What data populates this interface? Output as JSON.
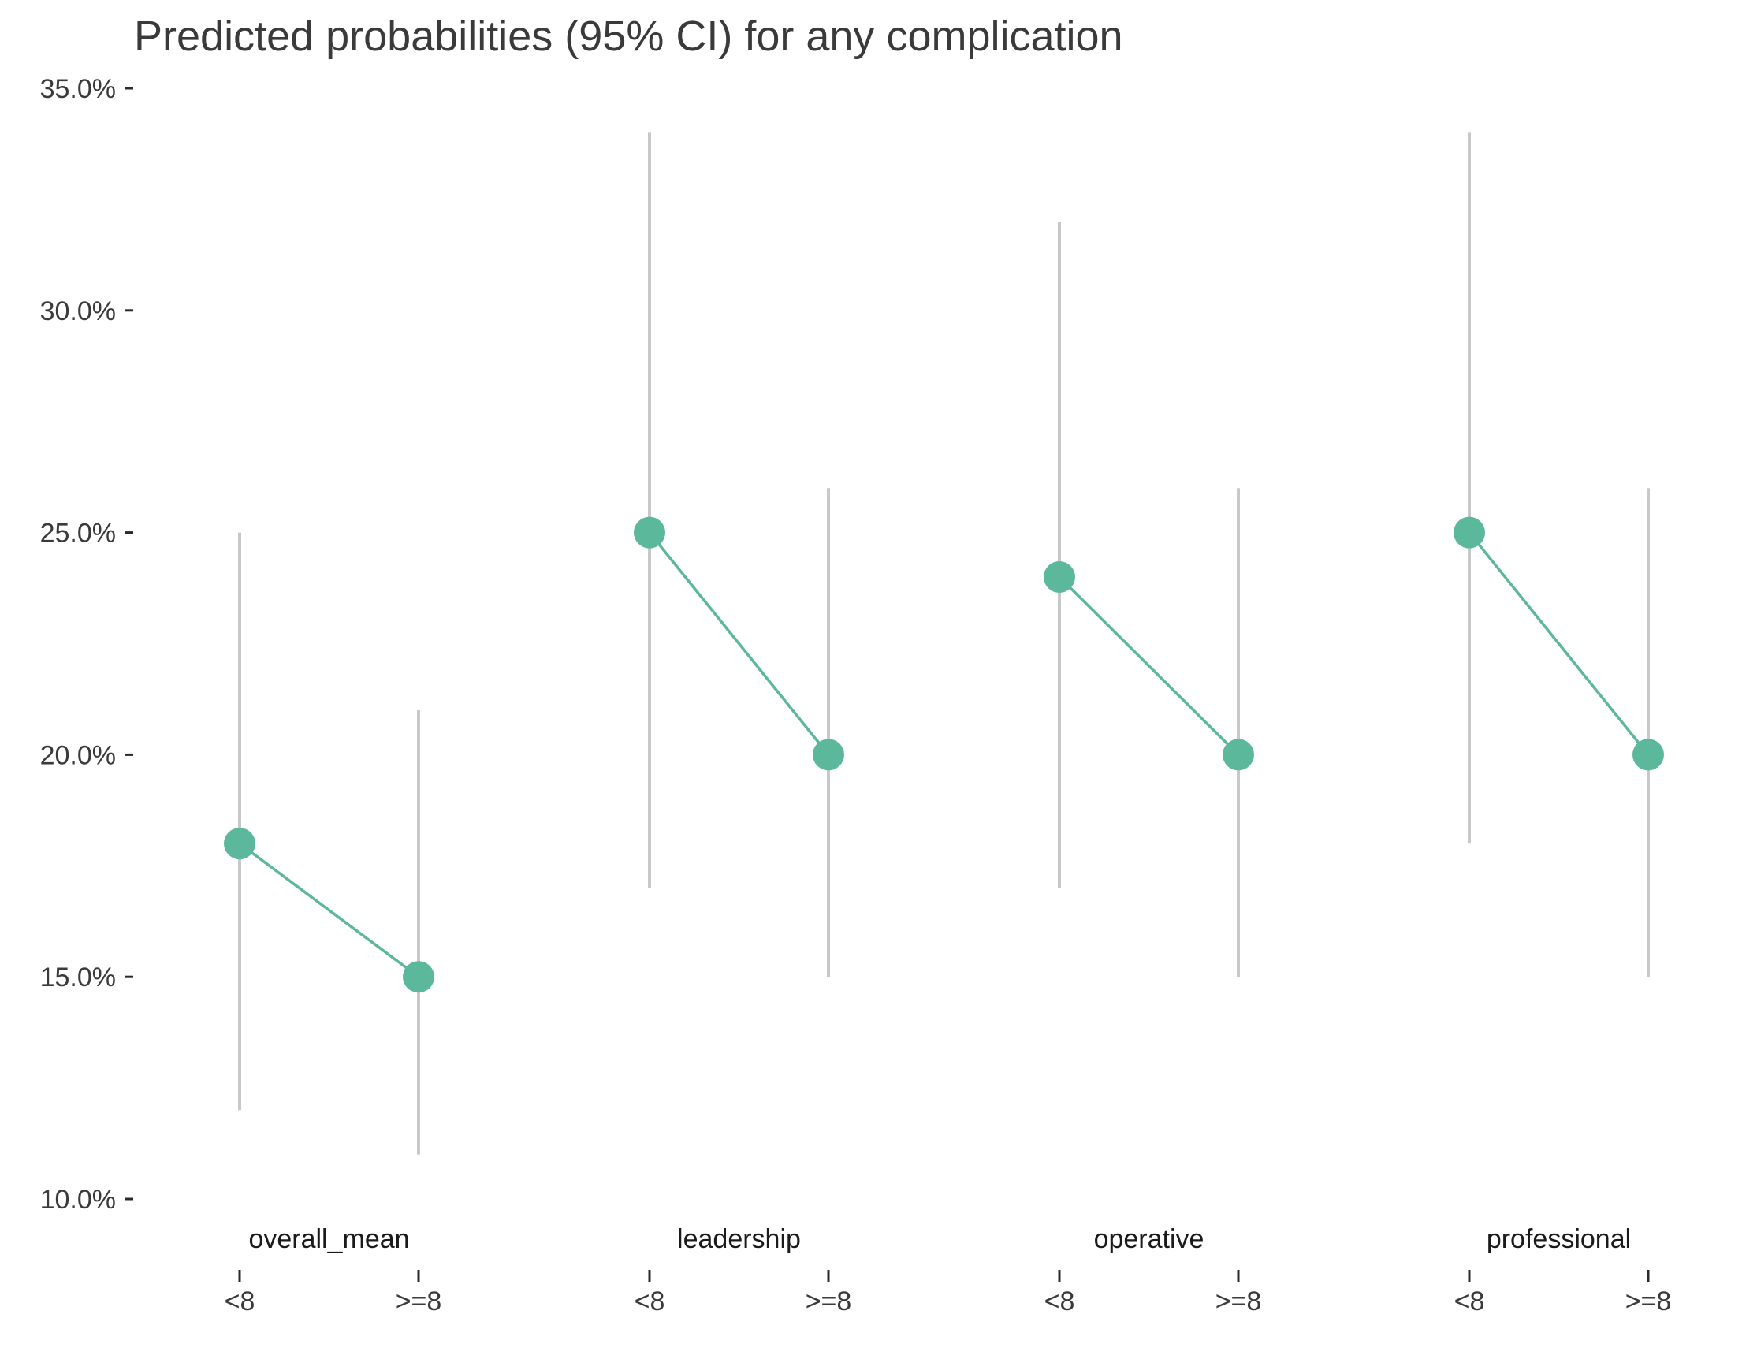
{
  "chart_data": {
    "type": "line",
    "title": "Predicted probabilities (95% CI) for any complication",
    "xlabel": "",
    "ylabel": "",
    "ylim": [
      0.1,
      0.35
    ],
    "yticks": [
      0.1,
      0.15,
      0.2,
      0.25,
      0.3,
      0.35
    ],
    "ytick_labels": [
      "10.0%",
      "15.0%",
      "20.0%",
      "25.0%",
      "30.0%",
      "35.0%"
    ],
    "grid": false,
    "legend": "none",
    "colors": {
      "series": "#5bb89a",
      "ci": "#c8c8c8",
      "axis": "#2a2a2a",
      "text": "#3a3a3a"
    },
    "groups": [
      {
        "name": "overall_mean",
        "points": [
          {
            "x": "<8",
            "y": 0.18,
            "lower": 0.12,
            "upper": 0.25
          },
          {
            "x": ">=8",
            "y": 0.15,
            "lower": 0.11,
            "upper": 0.21
          }
        ]
      },
      {
        "name": "leadership",
        "points": [
          {
            "x": "<8",
            "y": 0.25,
            "lower": 0.17,
            "upper": 0.34
          },
          {
            "x": ">=8",
            "y": 0.2,
            "lower": 0.15,
            "upper": 0.26
          }
        ]
      },
      {
        "name": "operative",
        "points": [
          {
            "x": "<8",
            "y": 0.24,
            "lower": 0.17,
            "upper": 0.32
          },
          {
            "x": ">=8",
            "y": 0.2,
            "lower": 0.15,
            "upper": 0.26
          }
        ]
      },
      {
        "name": "professional",
        "points": [
          {
            "x": "<8",
            "y": 0.25,
            "lower": 0.18,
            "upper": 0.34
          },
          {
            "x": ">=8",
            "y": 0.2,
            "lower": 0.15,
            "upper": 0.26
          }
        ]
      }
    ]
  }
}
